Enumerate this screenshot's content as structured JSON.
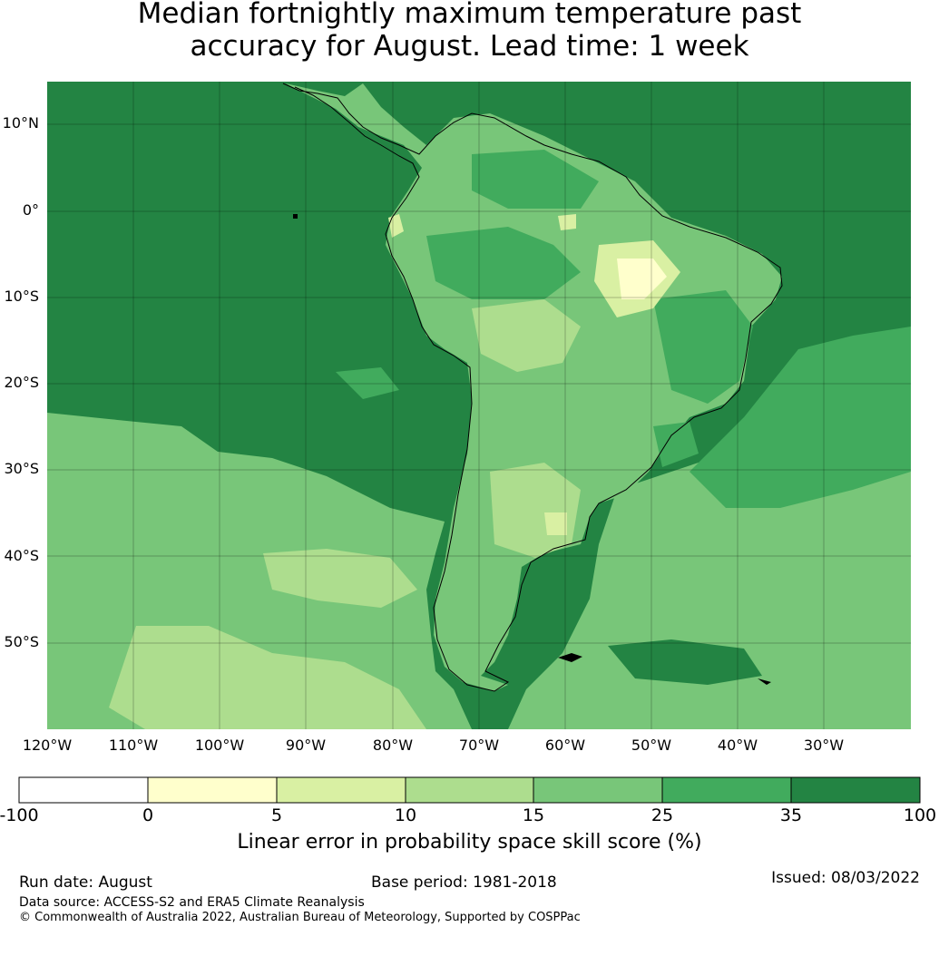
{
  "title": {
    "line1": "Median fortnightly maximum temperature past",
    "line2": "accuracy for August. Lead time: 1 week"
  },
  "map": {
    "lat_labels": [
      "10°N",
      "0°",
      "10°S",
      "20°S",
      "30°S",
      "40°S",
      "50°S"
    ],
    "lon_labels": [
      "120°W",
      "110°W",
      "100°W",
      "90°W",
      "80°W",
      "70°W",
      "60°W",
      "50°W",
      "40°W",
      "30°W"
    ],
    "lat_extent": [
      15,
      -60
    ],
    "lon_extent": [
      -120,
      -20
    ],
    "colors": {
      "darkest_green": "#238443",
      "dark_green": "#41ab5d",
      "mid_green": "#78c679",
      "light_green": "#addd8e",
      "pale_green": "#d9f0a3",
      "pale_yellow": "#ffffcc",
      "white": "#ffffff"
    }
  },
  "colorbar": {
    "ticks": [
      "-100",
      "0",
      "5",
      "10",
      "15",
      "25",
      "35",
      "100"
    ],
    "colors": [
      "#ffffff",
      "#ffffcc",
      "#d9f0a3",
      "#addd8e",
      "#78c679",
      "#41ab5d",
      "#238443"
    ],
    "label": "Linear error in probability space skill score (%)"
  },
  "footer": {
    "run_date": "Run date: August",
    "base_period": "Base period: 1981-2018",
    "issued": "Issued: 08/03/2022",
    "data_source": "Data source: ACCESS-S2 and ERA5 Climate Reanalysis",
    "copyright": "© Commonwealth of Australia 2022, Australian Bureau of Meteorology, Supported by COSPPac"
  }
}
